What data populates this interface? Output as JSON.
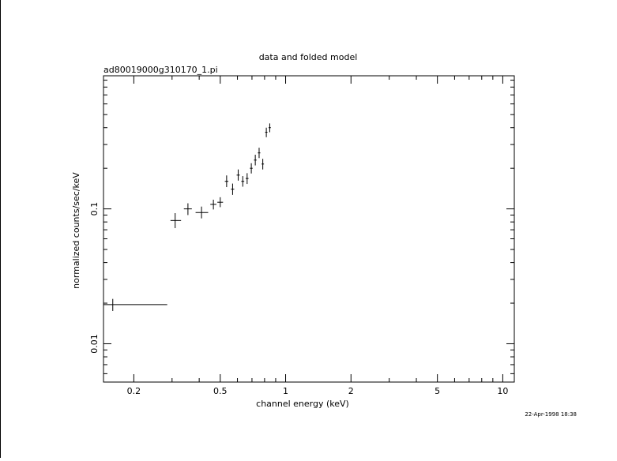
{
  "chart_data": {
    "type": "scatter",
    "title": "data and folded model",
    "subtitle": "ad80019000g310170_1.pi",
    "xlabel": "channel energy (keV)",
    "ylabel": "normalized counts/sec/keV",
    "x_scale": "log",
    "y_scale": "log",
    "xlim": [
      0.145,
      11.3
    ],
    "ylim": [
      0.0052,
      0.97
    ],
    "x_ticks": [
      {
        "value": 0.2,
        "label": "0.2"
      },
      {
        "value": 0.5,
        "label": "0.5"
      },
      {
        "value": 1,
        "label": "1"
      },
      {
        "value": 2,
        "label": "2"
      },
      {
        "value": 5,
        "label": "5"
      },
      {
        "value": 10,
        "label": "10"
      }
    ],
    "y_ticks": [
      {
        "value": 0.1,
        "label": "0.1"
      },
      {
        "value": 0.01,
        "label": "0.01"
      }
    ],
    "timestamp": "22-Apr-1998 18:38",
    "series": [
      {
        "points": [
          {
            "x": 0.16,
            "xlo": 0.145,
            "xhi": 0.285,
            "y": 0.0195,
            "ylo": 0.0175,
            "yhi": 0.0215
          },
          {
            "x": 0.31,
            "xlo": 0.295,
            "xhi": 0.33,
            "y": 0.082,
            "ylo": 0.072,
            "yhi": 0.093
          },
          {
            "x": 0.355,
            "xlo": 0.34,
            "xhi": 0.37,
            "y": 0.1,
            "ylo": 0.09,
            "yhi": 0.11
          },
          {
            "x": 0.41,
            "xlo": 0.385,
            "xhi": 0.44,
            "y": 0.094,
            "ylo": 0.085,
            "yhi": 0.104
          },
          {
            "x": 0.465,
            "xlo": 0.45,
            "xhi": 0.48,
            "y": 0.108,
            "ylo": 0.099,
            "yhi": 0.117
          },
          {
            "x": 0.5,
            "xlo": 0.485,
            "xhi": 0.515,
            "y": 0.112,
            "ylo": 0.103,
            "yhi": 0.122
          },
          {
            "x": 0.535,
            "xlo": 0.525,
            "xhi": 0.545,
            "y": 0.16,
            "ylo": 0.145,
            "yhi": 0.177
          },
          {
            "x": 0.57,
            "xlo": 0.56,
            "xhi": 0.58,
            "y": 0.14,
            "ylo": 0.127,
            "yhi": 0.154
          },
          {
            "x": 0.605,
            "xlo": 0.595,
            "xhi": 0.615,
            "y": 0.178,
            "ylo": 0.162,
            "yhi": 0.196
          },
          {
            "x": 0.635,
            "xlo": 0.625,
            "xhi": 0.645,
            "y": 0.16,
            "ylo": 0.146,
            "yhi": 0.175
          },
          {
            "x": 0.665,
            "xlo": 0.655,
            "xhi": 0.675,
            "y": 0.168,
            "ylo": 0.153,
            "yhi": 0.184
          },
          {
            "x": 0.695,
            "xlo": 0.685,
            "xhi": 0.705,
            "y": 0.2,
            "ylo": 0.183,
            "yhi": 0.218
          },
          {
            "x": 0.725,
            "xlo": 0.715,
            "xhi": 0.735,
            "y": 0.23,
            "ylo": 0.21,
            "yhi": 0.252
          },
          {
            "x": 0.755,
            "xlo": 0.745,
            "xhi": 0.765,
            "y": 0.26,
            "ylo": 0.238,
            "yhi": 0.284
          },
          {
            "x": 0.785,
            "xlo": 0.775,
            "xhi": 0.795,
            "y": 0.215,
            "ylo": 0.196,
            "yhi": 0.235
          },
          {
            "x": 0.815,
            "xlo": 0.805,
            "xhi": 0.825,
            "y": 0.37,
            "ylo": 0.34,
            "yhi": 0.4
          },
          {
            "x": 0.845,
            "xlo": 0.835,
            "xhi": 0.855,
            "y": 0.4,
            "ylo": 0.37,
            "yhi": 0.43
          }
        ],
        "note": "binned spectrum with x/y error bars"
      }
    ]
  }
}
